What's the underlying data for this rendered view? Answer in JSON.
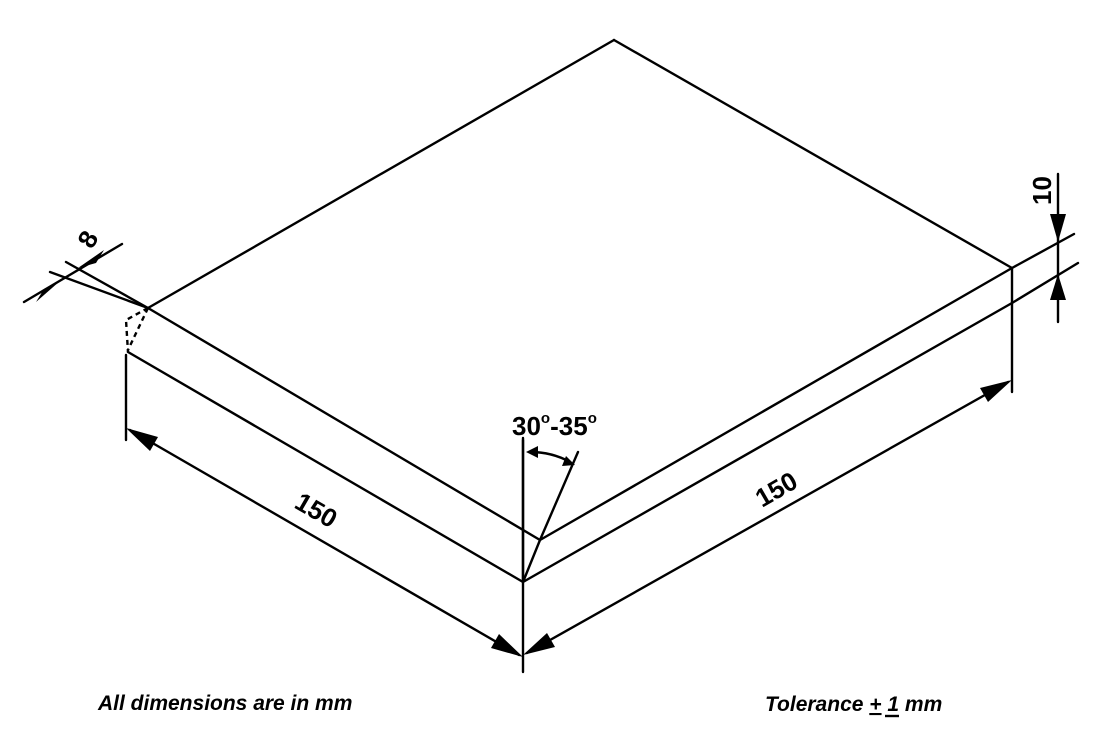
{
  "drawing": {
    "dimensions": {
      "left_length": "150",
      "right_length": "150",
      "bevel_width": "8",
      "thickness": "10"
    },
    "angle": {
      "low": "30",
      "high": "35",
      "degree_symbol": "o",
      "separator": "-"
    },
    "notes": {
      "units": "All dimensions are in mm",
      "tolerance_prefix": "Tolerance",
      "tolerance_symbol": "+",
      "tolerance_suffix": "1 mm"
    }
  }
}
